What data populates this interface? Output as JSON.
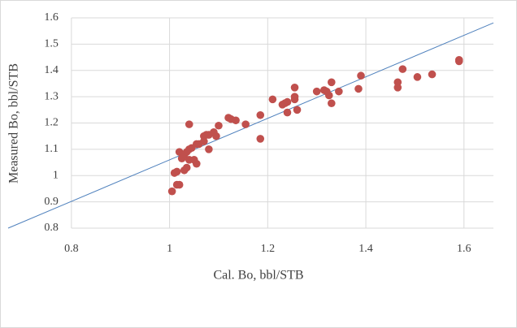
{
  "chart_data": {
    "type": "scatter",
    "x_label": "Cal. Bo, bbl/STB",
    "y_label": "Measured Bo, bbl/STB",
    "x": [
      1.005,
      1.01,
      1.015,
      1.015,
      1.02,
      1.02,
      1.025,
      1.03,
      1.03,
      1.035,
      1.035,
      1.04,
      1.04,
      1.04,
      1.045,
      1.05,
      1.055,
      1.055,
      1.06,
      1.07,
      1.075,
      1.07,
      1.08,
      1.08,
      1.09,
      1.095,
      1.1,
      1.12,
      1.125,
      1.135,
      1.155,
      1.185,
      1.185,
      1.21,
      1.23,
      1.235,
      1.24,
      1.24,
      1.255,
      1.255,
      1.255,
      1.26,
      1.3,
      1.315,
      1.32,
      1.325,
      1.33,
      1.33,
      1.345,
      1.385,
      1.39,
      1.465,
      1.465,
      1.475,
      1.505,
      1.535,
      1.59,
      1.59
    ],
    "values": [
      0.94,
      1.01,
      1.015,
      0.965,
      0.965,
      1.09,
      1.065,
      1.02,
      1.08,
      1.03,
      1.09,
      1.1,
      1.195,
      1.06,
      1.105,
      1.06,
      1.12,
      1.045,
      1.12,
      1.15,
      1.155,
      1.13,
      1.155,
      1.1,
      1.165,
      1.15,
      1.19,
      1.22,
      1.215,
      1.21,
      1.195,
      1.23,
      1.14,
      1.29,
      1.27,
      1.275,
      1.28,
      1.24,
      1.335,
      1.3,
      1.29,
      1.25,
      1.32,
      1.325,
      1.32,
      1.305,
      1.355,
      1.275,
      1.32,
      1.33,
      1.38,
      1.335,
      1.355,
      1.405,
      1.375,
      1.385,
      1.44,
      1.435
    ],
    "color": "#c0504d",
    "line_x": [
      0.671,
      1.66
    ],
    "line_values": [
      0.8,
      1.581
    ],
    "line_color": "#4f81bd",
    "xlim": [
      0.671,
      1.66
    ],
    "ylim": [
      0.8,
      1.6
    ],
    "xticks": [
      0.8,
      1,
      1.2,
      1.4,
      1.6
    ],
    "yticks": [
      0.8,
      0.9,
      1,
      1.1,
      1.2,
      1.3,
      1.4,
      1.5,
      1.6
    ],
    "grid": true
  }
}
